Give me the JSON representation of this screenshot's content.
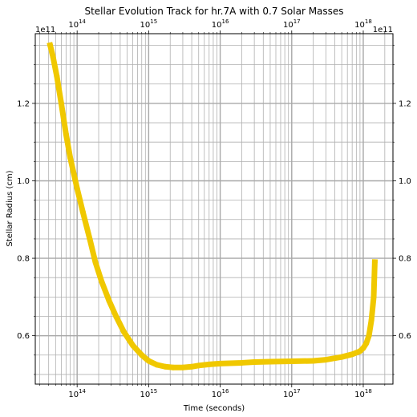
{
  "chart_data": {
    "type": "line",
    "title": "Stellar Evolution Track for hr.7A with 0.7 Solar Masses",
    "xlabel": "Time (seconds)",
    "ylabel": "Stellar Radius (cm)",
    "x_scale": "log",
    "xlim": [
      26000000000000.0,
      2.6e+18
    ],
    "ylim": [
      47500000000.0,
      138000000000.0
    ],
    "x_ticks": [
      {
        "value": 100000000000000.0,
        "base": "10",
        "exp": "14"
      },
      {
        "value": 1000000000000000.0,
        "base": "10",
        "exp": "15"
      },
      {
        "value": 1e+16,
        "base": "10",
        "exp": "16"
      },
      {
        "value": 1e+17,
        "base": "10",
        "exp": "17"
      },
      {
        "value": 1e+18,
        "base": "10",
        "exp": "18"
      }
    ],
    "y_ticks": [
      {
        "value": 60000000000.0,
        "label": "0.6"
      },
      {
        "value": 80000000000.0,
        "label": "0.8"
      },
      {
        "value": 100000000000.0,
        "label": "1.0"
      },
      {
        "value": 120000000000.0,
        "label": "1.2"
      }
    ],
    "y_offset_label": "1e11",
    "grid": true,
    "mirrored_axes": true,
    "series": [
      {
        "color": "#f0c800",
        "x": [
          42000000000000.0,
          46000000000000.0,
          52000000000000.0,
          60000000000000.0,
          70000000000000.0,
          80000000000000.0,
          100000000000000.0,
          120000000000000.0,
          150000000000000.0,
          180000000000000.0,
          220000000000000.0,
          280000000000000.0,
          350000000000000.0,
          450000000000000.0,
          600000000000000.0,
          800000000000000.0,
          1000000000000000.0,
          1300000000000000.0,
          1700000000000000.0,
          2200000000000000.0,
          3000000000000000.0,
          4000000000000000.0,
          5000000000000000.0,
          7000000000000000.0,
          1e+16,
          2e+16,
          3e+16,
          5e+16,
          1e+17,
          2e+17,
          3e+17,
          5e+17,
          7e+17,
          9e+17,
          1e+18,
          1.1e+18,
          1.2e+18,
          1.3e+18,
          1.4e+18,
          1.45e+18
        ],
        "y": [
          135000000000.0,
          132000000000.0,
          127000000000.0,
          120000000000.0,
          112000000000.0,
          106000000000.0,
          98000000000.0,
          92000000000.0,
          85000000000.0,
          79000000000.0,
          74000000000.0,
          69000000000.0,
          65000000000.0,
          61000000000.0,
          57500000000.0,
          55000000000.0,
          53500000000.0,
          52500000000.0,
          52000000000.0,
          51800000000.0,
          51800000000.0,
          52000000000.0,
          52300000000.0,
          52600000000.0,
          52800000000.0,
          53000000000.0,
          53200000000.0,
          53300000000.0,
          53400000000.0,
          53500000000.0,
          53800000000.0,
          54500000000.0,
          55200000000.0,
          56000000000.0,
          56800000000.0,
          58000000000.0,
          60000000000.0,
          64000000000.0,
          70000000000.0,
          79000000000.0
        ]
      }
    ]
  }
}
